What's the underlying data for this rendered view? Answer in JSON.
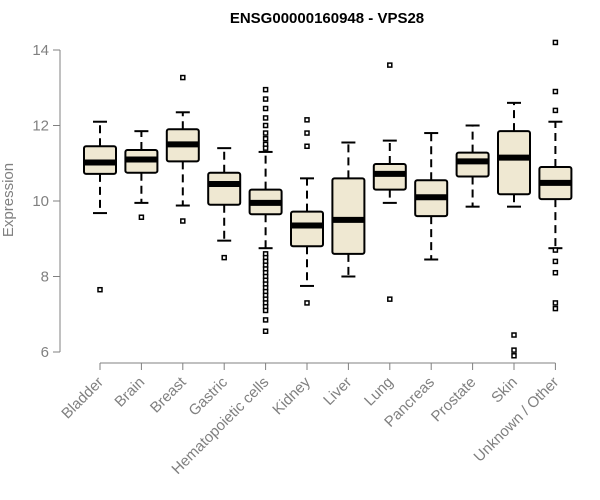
{
  "chart_data": {
    "type": "boxplot",
    "title": "ENSG00000160948 - VPS28",
    "xlabel": "",
    "ylabel": "Expression",
    "ylim": [
      5.9,
      14.4
    ],
    "yticks": [
      6,
      8,
      10,
      12,
      14
    ],
    "ytick_labels": [
      "6",
      "8",
      "10",
      "12",
      "14"
    ],
    "grid": false,
    "legend": "none",
    "box_fill": "#efe8d2",
    "box_stroke": "#000000",
    "axis_color": "#808080",
    "categories": [
      "Bladder",
      "Brain",
      "Breast",
      "Gastric",
      "Hematopoietic cells",
      "Kidney",
      "Liver",
      "Lung",
      "Pancreas",
      "Prostate",
      "Skin",
      "Unknown / Other"
    ],
    "boxes": [
      {
        "label": "Bladder",
        "whisker_low": 9.68,
        "q1": 10.72,
        "median": 11.02,
        "q3": 11.45,
        "whisker_high": 12.1,
        "outliers": [
          7.65
        ]
      },
      {
        "label": "Brain",
        "whisker_low": 9.95,
        "q1": 10.75,
        "median": 11.1,
        "q3": 11.35,
        "whisker_high": 11.85,
        "outliers": [
          9.57
        ]
      },
      {
        "label": "Breast",
        "whisker_low": 9.88,
        "q1": 11.05,
        "median": 11.5,
        "q3": 11.9,
        "whisker_high": 12.35,
        "outliers": [
          13.27,
          9.47
        ]
      },
      {
        "label": "Gastric",
        "whisker_low": 8.95,
        "q1": 9.9,
        "median": 10.45,
        "q3": 10.75,
        "whisker_high": 11.4,
        "outliers": [
          8.5
        ]
      },
      {
        "label": "Hematopoietic cells",
        "whisker_low": 8.75,
        "q1": 9.65,
        "median": 9.95,
        "q3": 10.3,
        "whisker_high": 11.3,
        "outliers": [
          12.95,
          12.7,
          12.45,
          12.2,
          12.0,
          11.8,
          11.65,
          11.5,
          11.4,
          8.6,
          8.5,
          8.4,
          8.3,
          8.2,
          8.1,
          8.0,
          7.9,
          7.8,
          7.7,
          7.6,
          7.5,
          7.4,
          7.3,
          7.2,
          7.1,
          6.85,
          6.55
        ]
      },
      {
        "label": "Kidney",
        "whisker_low": 7.75,
        "q1": 8.8,
        "median": 9.35,
        "q3": 9.72,
        "whisker_high": 10.6,
        "outliers": [
          12.15,
          11.8,
          11.45,
          7.3
        ]
      },
      {
        "label": "Liver",
        "whisker_low": 8.0,
        "q1": 8.6,
        "median": 9.5,
        "q3": 10.6,
        "whisker_high": 11.55,
        "outliers": []
      },
      {
        "label": "Lung",
        "whisker_low": 9.95,
        "q1": 10.3,
        "median": 10.72,
        "q3": 10.98,
        "whisker_high": 11.6,
        "outliers": [
          13.6,
          7.4
        ]
      },
      {
        "label": "Pancreas",
        "whisker_low": 8.45,
        "q1": 9.6,
        "median": 10.1,
        "q3": 10.55,
        "whisker_high": 11.8,
        "outliers": []
      },
      {
        "label": "Prostate",
        "whisker_low": 9.85,
        "q1": 10.65,
        "median": 11.05,
        "q3": 11.28,
        "whisker_high": 12.0,
        "outliers": []
      },
      {
        "label": "Skin",
        "whisker_low": 9.85,
        "q1": 10.18,
        "median": 11.15,
        "q3": 11.85,
        "whisker_high": 12.6,
        "outliers": [
          6.45,
          6.05,
          5.9
        ]
      },
      {
        "label": "Unknown / Other",
        "whisker_low": 8.75,
        "q1": 10.05,
        "median": 10.48,
        "q3": 10.9,
        "whisker_high": 12.1,
        "outliers": [
          14.2,
          12.9,
          12.4,
          8.7,
          8.4,
          8.1,
          7.3,
          7.15
        ]
      }
    ]
  }
}
